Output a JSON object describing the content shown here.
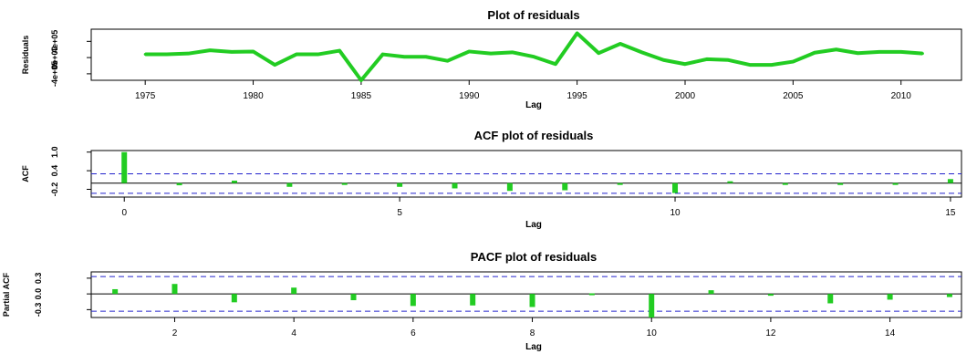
{
  "colors": {
    "series": "#22cc22",
    "ci": "#2222cc",
    "axis": "#000000"
  },
  "chart_data": [
    {
      "type": "line",
      "title": "Plot of residuals",
      "xlabel": "Lag",
      "ylabel": "Residuals",
      "xlim": [
        1972.5,
        2012.8
      ],
      "ylim": [
        -560000,
        700000
      ],
      "xticks": [
        1975,
        1980,
        1985,
        1990,
        1995,
        2000,
        2005,
        2010
      ],
      "yticks": [
        {
          "value": -400000,
          "label": "-4e+05"
        },
        {
          "value": 0,
          "label": "0e+00"
        },
        {
          "value": 400000,
          "label": "4e+05"
        }
      ],
      "x": [
        1975,
        1976,
        1977,
        1978,
        1979,
        1980,
        1981,
        1982,
        1983,
        1984,
        1985,
        1986,
        1987,
        1988,
        1989,
        1990,
        1991,
        1992,
        1993,
        1994,
        1995,
        1996,
        1997,
        1998,
        1999,
        2000,
        2001,
        2002,
        2003,
        2004,
        2005,
        2006,
        2007,
        2008,
        2009,
        2010,
        2011
      ],
      "values": [
        80000,
        80000,
        100000,
        180000,
        140000,
        150000,
        -180000,
        80000,
        80000,
        170000,
        -560000,
        80000,
        20000,
        20000,
        -80000,
        150000,
        100000,
        130000,
        20000,
        -160000,
        600000,
        110000,
        340000,
        130000,
        -60000,
        -160000,
        -40000,
        -60000,
        -180000,
        -180000,
        -100000,
        120000,
        200000,
        110000,
        140000,
        140000,
        100000
      ]
    },
    {
      "type": "bar",
      "title": "ACF plot of residuals",
      "xlabel": "Lag",
      "ylabel": "ACF",
      "xlim": [
        -0.6,
        15.2
      ],
      "ylim": [
        -0.45,
        1.05
      ],
      "xticks": [
        0,
        5,
        10,
        15
      ],
      "yticks": [
        {
          "value": -0.2,
          "label": "-0.2"
        },
        {
          "value": 0.4,
          "label": "0.4"
        },
        {
          "value": 1.0,
          "label": "1.0"
        }
      ],
      "ci": [
        0.3,
        -0.33
      ],
      "x": [
        0,
        1,
        2,
        3,
        4,
        5,
        6,
        7,
        8,
        9,
        10,
        11,
        12,
        13,
        14,
        15
      ],
      "values": [
        1.0,
        -0.07,
        0.08,
        -0.12,
        -0.05,
        -0.12,
        -0.17,
        -0.25,
        -0.23,
        -0.05,
        -0.32,
        0.06,
        -0.02,
        -0.06,
        -0.02,
        0.13
      ]
    },
    {
      "type": "bar",
      "title": "PACF plot of residuals",
      "xlabel": "Lag",
      "ylabel": "Partial ACF",
      "xlim": [
        0.6,
        15.2
      ],
      "ylim": [
        -0.45,
        0.42
      ],
      "xticks": [
        2,
        4,
        6,
        8,
        10,
        12,
        14
      ],
      "yticks": [
        {
          "value": -0.3,
          "label": "-0.3"
        },
        {
          "value": 0.0,
          "label": "0.0"
        },
        {
          "value": 0.3,
          "label": "0.3"
        }
      ],
      "ci": [
        0.33,
        -0.33
      ],
      "x": [
        1,
        2,
        3,
        4,
        5,
        6,
        7,
        8,
        9,
        10,
        11,
        12,
        13,
        14,
        15
      ],
      "values": [
        0.09,
        0.19,
        -0.16,
        0.12,
        -0.12,
        -0.23,
        -0.22,
        -0.25,
        0.01,
        -0.45,
        0.07,
        -0.02,
        -0.18,
        -0.11,
        -0.06
      ]
    }
  ]
}
